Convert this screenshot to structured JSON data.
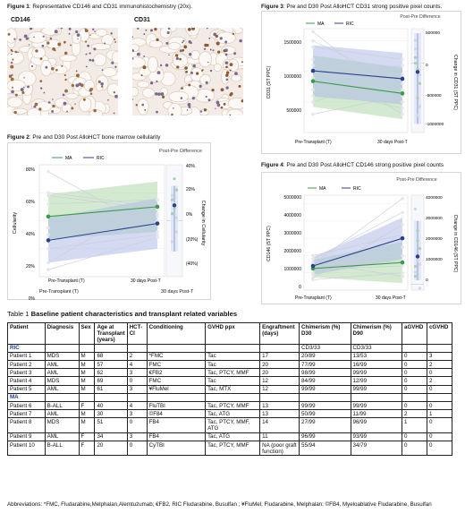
{
  "figure1": {
    "caption_bold": "Figure 1",
    "caption_rest": ": Representative CD146 and CD31 immunohistochemistry (20x).",
    "panels": [
      "CD146",
      "CD31"
    ]
  },
  "figure2": {
    "caption_bold": "Figure 2",
    "caption_rest": ": Pre and D30 Post AlloHCT bone marrow cellularity",
    "diff_title": "Post-Pre Difference",
    "legend": [
      "MA",
      "RIC"
    ],
    "ylabel": "Cellularity",
    "y2label": "Change in Cellularity",
    "yticks": [
      "80%",
      "60%",
      "40%",
      "20%",
      "0%"
    ],
    "y2ticks": [
      "40%",
      "20%",
      "0%",
      "(20%)",
      "(40%)"
    ],
    "xlabels": [
      "Pre-Transplant (T)",
      "30 days Post-T"
    ],
    "below_x": [
      "Pre-Transplant (T)",
      "30 days Post-T"
    ]
  },
  "figure3": {
    "caption_bold": "Figure 3",
    "caption_rest": ": Pre and D30 Post AlloHCT CD31 strong positive pixel counts.",
    "diff_title": "Post-Pre Difference",
    "legend": [
      "MA",
      "RIC"
    ],
    "ylabel": "CD31 (ST PPC)",
    "y2label": "Change in CD31 (ST PPC)",
    "yticks": [
      "1500000",
      "1000000",
      "500000"
    ],
    "y2ticks": [
      "500000",
      "0",
      "-500000",
      "-1000000"
    ],
    "xlabels": [
      "Pre-Transplant (T)",
      "30 days Post-T"
    ]
  },
  "figure4": {
    "caption_bold": "Figure 4",
    "caption_rest": ": Pre and D30 Post AlloHCT CD146 strong positive pixel counts",
    "diff_title": "Post-Pre Difference",
    "legend": [
      "MA",
      "RIC"
    ],
    "ylabel": "CD146 (ST PPC)",
    "y2label": "Change in CD146 (ST PPC)",
    "yticks": [
      "5000000",
      "4000000",
      "3000000",
      "2000000",
      "1000000",
      "0"
    ],
    "y2ticks": [
      "4000000",
      "3000000",
      "2000000",
      "1000000",
      "0"
    ],
    "xlabels": [
      "Pre-Transplant (T)",
      "30 days Post-T"
    ]
  },
  "chart_data": [
    {
      "type": "line",
      "title": "Pre and D30 Post AlloHCT bone marrow cellularity",
      "ylabel": "Cellularity",
      "categories": [
        "Pre-Transplant (T)",
        "30 days Post-T"
      ],
      "ylim": [
        0,
        80
      ],
      "series": [
        {
          "name": "MA",
          "values": [
            43,
            50
          ]
        },
        {
          "name": "RIC",
          "values": [
            26,
            38
          ]
        }
      ],
      "difference": {
        "title": "Post-Pre Difference",
        "ylabel": "Change in Cellularity",
        "ylim": [
          -40,
          40
        ],
        "mean": 11
      }
    },
    {
      "type": "line",
      "title": "Pre and D30 Post AlloHCT CD31 strong positive pixel counts.",
      "ylabel": "CD31 (ST PPC)",
      "categories": [
        "Pre-Transplant (T)",
        "30 days Post-T"
      ],
      "ylim": [
        0,
        1700000
      ],
      "series": [
        {
          "name": "MA",
          "values": [
            840000,
            640000
          ]
        },
        {
          "name": "RIC",
          "values": [
            1010000,
            880000
          ]
        }
      ],
      "difference": {
        "title": "Post-Pre Difference",
        "ylabel": "Change in CD31 (ST PPC)",
        "ylim": [
          -1200000,
          600000
        ],
        "mean": -150000
      }
    },
    {
      "type": "line",
      "title": "Pre and D30 Post AlloHCT CD146 strong positive pixel counts",
      "ylabel": "CD146 (ST PPC)",
      "categories": [
        "Pre-Transplant (T)",
        "30 days Post-T"
      ],
      "ylim": [
        0,
        5500000
      ],
      "series": [
        {
          "name": "MA",
          "values": [
            1250000,
            1600000
          ]
        },
        {
          "name": "RIC",
          "values": [
            1400000,
            3000000
          ]
        }
      ],
      "difference": {
        "title": "Post-Pre Difference",
        "ylabel": "Change in CD146 (ST PPC)",
        "ylim": [
          -300000,
          4500000
        ],
        "mean": 1400000
      }
    }
  ],
  "table": {
    "title_prefix": "Table 1 ",
    "title_bold": "Baseline patient characteristics and transplant related variables",
    "headers": [
      "Patient",
      "Diagnosis",
      "Sex",
      "Age at Transplant (years)",
      "HCT-CI",
      "Conditioning",
      "GVHD ppx",
      "Engraftment (days)",
      "Chimerism (%) D30",
      "Chimerism (%) D90",
      "aGVHD",
      "cGVHD"
    ],
    "subheader": {
      "group": "RIC",
      "d30": "CD3/33",
      "d90": "CD3/33"
    },
    "ric_rows": [
      [
        "Patient 1",
        "MDS",
        "M",
        "68",
        "2",
        "*FMC",
        "Tac",
        "17",
        "20/89",
        "13/53",
        "0",
        "3"
      ],
      [
        "Patient 2",
        "AML",
        "M",
        "57",
        "4",
        "FMC",
        "Tac",
        "20",
        "77/99",
        "16/99",
        "0",
        "2"
      ],
      [
        "Patient 3",
        "AML",
        "M",
        "62",
        "3",
        "€FB2",
        "Tac, PTCY, MMF",
        "20",
        "98/99",
        "99/99",
        "0",
        "0"
      ],
      [
        "Patient 4",
        "MDS",
        "M",
        "69",
        "0",
        "FMC",
        "Tac",
        "12",
        "84/99",
        "12/99",
        "0",
        "2"
      ],
      [
        "Patient 5",
        "AML",
        "M",
        "61",
        "3",
        "¥FluMel",
        "Tac, MTX",
        "12",
        "99/99",
        "99/99",
        "0",
        "0"
      ]
    ],
    "ma_group": "MA",
    "ma_rows": [
      [
        "Patient 6",
        "B-ALL",
        "F",
        "40",
        "4",
        "FluTBI",
        "Tac, PTCY, MMF",
        "13",
        "99/99",
        "99/99",
        "0",
        "0"
      ],
      [
        "Patient 7",
        "AML",
        "M",
        "30",
        "3",
        "©F84",
        "Tac, ATG",
        "13",
        "50/99",
        "11/99",
        "2",
        "1"
      ],
      [
        "Patient 8",
        "MDS",
        "M",
        "51",
        "0",
        "FB4",
        "Tac, PTCY, MMF, ATG",
        "14",
        "27/99",
        "96/99",
        "1",
        "0"
      ],
      [
        "Patient 9",
        "AML",
        "F",
        "34",
        "3",
        "FB4",
        "Tac, ATG",
        "11",
        "96/99",
        "93/99",
        "0",
        "0"
      ],
      [
        "Patient 10",
        "B-ALL",
        "F",
        "20",
        "0",
        "CyTBI",
        "Tac, PTCY, MMF",
        "NA (poor graft function)",
        "55/94",
        "34/79",
        "0",
        "0"
      ]
    ]
  },
  "abbreviations": "Abbreviations: *FMC, Fludarabine,Melphalan,Alemtuzumab; €FB2, RIC Fludarabine, Busulfan ; ¥FluMel, Fludarabine, Melphalan; ©FB4, Myeloablative Fludarabine, Busulfan",
  "colors": {
    "ma": "#3d9a4a",
    "ric": "#2b3f8f",
    "ma_band": "#a8d5a4",
    "ric_band": "#a9b5e6",
    "diff_band": "#dfe6f6"
  }
}
